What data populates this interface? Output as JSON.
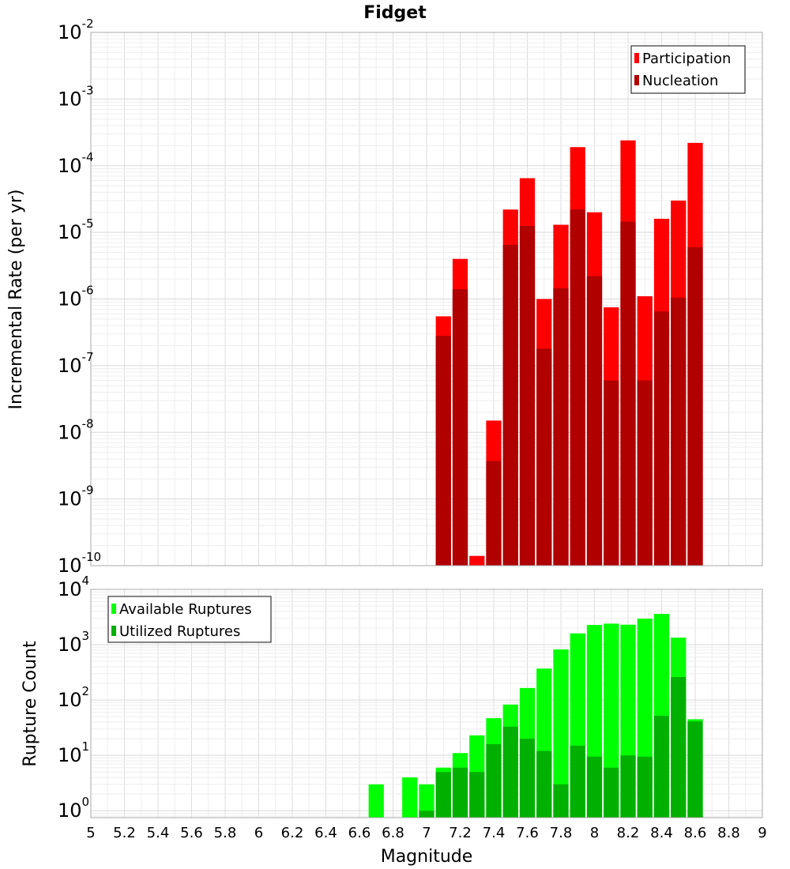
{
  "chart_data": [
    {
      "type": "bar",
      "title": "Fidget",
      "xlabel": "",
      "ylabel": "Incremental Rate (per yr)",
      "y_scale": "log",
      "ylim": [
        1e-10,
        0.01
      ],
      "xlim": [
        5,
        9
      ],
      "yticks": [
        "10^-10",
        "10^-9",
        "10^-8",
        "10^-7",
        "10^-6",
        "10^-5",
        "10^-4",
        "10^-3",
        "10^-2"
      ],
      "grid": true,
      "legend_position": "top-right",
      "bar_width": 0.1,
      "x": [
        7.1,
        7.2,
        7.3,
        7.4,
        7.5,
        7.6,
        7.7,
        7.8,
        7.9,
        8.0,
        8.1,
        8.2,
        8.3,
        8.4,
        8.5,
        8.6
      ],
      "series": [
        {
          "name": "Participation",
          "color": "#ff0000",
          "values": [
            5.5e-07,
            4e-06,
            1.4e-10,
            1.5e-08,
            2.2e-05,
            6.5e-05,
            1e-06,
            1.3e-05,
            0.00019,
            2e-05,
            7.5e-07,
            0.00024,
            1.1e-06,
            1.6e-05,
            3e-05,
            0.00022
          ]
        },
        {
          "name": "Nucleation",
          "color": "#b00000",
          "values": [
            2.8e-07,
            1.4e-06,
            null,
            3.7e-09,
            6.5e-06,
            1.25e-05,
            1.8e-07,
            1.45e-06,
            2.2e-05,
            2.2e-06,
            6e-08,
            1.45e-05,
            6e-08,
            6.5e-07,
            1.05e-06,
            6e-06
          ]
        }
      ]
    },
    {
      "type": "bar",
      "title": "",
      "xlabel": "Magnitude",
      "ylabel": "Rupture Count",
      "y_scale": "log",
      "ylim": [
        0.75,
        10000
      ],
      "xlim": [
        5,
        9
      ],
      "xticks": [
        "5",
        "5.2",
        "5.4",
        "5.6",
        "5.8",
        "6",
        "6.2",
        "6.4",
        "6.6",
        "6.8",
        "7",
        "7.2",
        "7.4",
        "7.6",
        "7.8",
        "8",
        "8.2",
        "8.4",
        "8.6",
        "8.8",
        "9"
      ],
      "yticks": [
        "10^0",
        "10^1",
        "10^2",
        "10^3",
        "10^4"
      ],
      "grid": true,
      "legend_position": "top-left",
      "bar_width": 0.1,
      "x": [
        6.7,
        6.9,
        7.0,
        7.1,
        7.2,
        7.3,
        7.4,
        7.5,
        7.6,
        7.7,
        7.8,
        7.9,
        8.0,
        8.1,
        8.2,
        8.3,
        8.4,
        8.5,
        8.6
      ],
      "series": [
        {
          "name": "Available Ruptures",
          "color": "#00ff00",
          "values": [
            3,
            4,
            3,
            6,
            11,
            23,
            47,
            83,
            165,
            370,
            820,
            1600,
            2270,
            2400,
            2300,
            2950,
            3600,
            1340,
            45
          ]
        },
        {
          "name": "Utilized Ruptures",
          "color": "#00b000",
          "values": [
            null,
            null,
            1,
            5,
            6,
            5,
            16,
            33,
            20,
            12,
            3,
            15,
            9.5,
            6,
            10,
            9.5,
            52,
            260,
            41
          ]
        }
      ]
    }
  ]
}
